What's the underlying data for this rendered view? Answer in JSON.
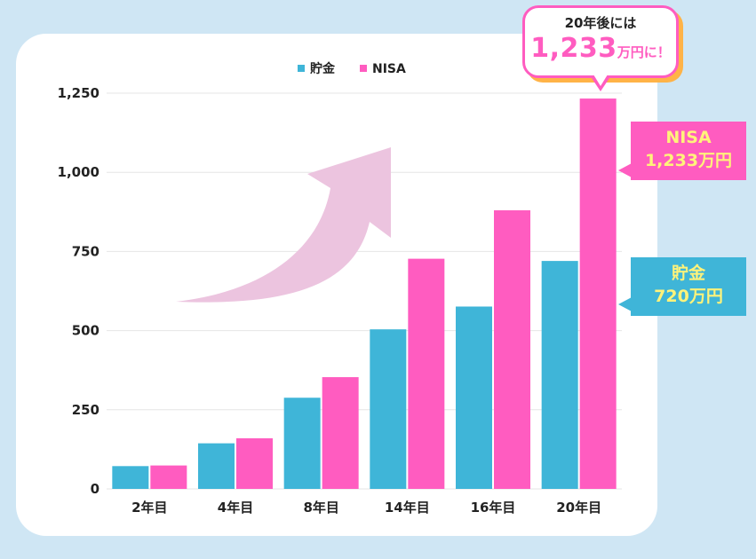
{
  "chart_data": {
    "type": "bar",
    "categories": [
      "2年目",
      "4年目",
      "8年目",
      "14年目",
      "16年目",
      "20年目"
    ],
    "series": [
      {
        "name": "貯金",
        "color": "#3fb5d8",
        "values": [
          72,
          144,
          288,
          504,
          576,
          720
        ]
      },
      {
        "name": "NISA",
        "color": "#ff5cc0",
        "values": [
          74,
          160,
          353,
          727,
          880,
          1233
        ]
      }
    ],
    "yticks": [
      0,
      250,
      500,
      750,
      1000,
      1250
    ],
    "ytick_labels": [
      "0",
      "250",
      "500",
      "750",
      "1,000",
      "1,250"
    ],
    "ylim": [
      0,
      1250
    ],
    "grid": true,
    "legend_position": "top-center"
  },
  "callout": {
    "line1": "20年後には",
    "amount": "1,233",
    "suffix": "万円に！"
  },
  "labels": {
    "nisa_name": "NISA",
    "nisa_value": "1,233万円",
    "chokin_name": "貯金",
    "chokin_value": "720万円"
  },
  "colors": {
    "background": "#cfe6f4",
    "chokin": "#3fb5d8",
    "nisa": "#ff5cc0",
    "arrow": "#ecc4df",
    "label_text": "#fff37a",
    "bubble_shadow": "#ffb347"
  },
  "decor": {
    "arrow_icon": "upward-trend-arrow-icon"
  }
}
